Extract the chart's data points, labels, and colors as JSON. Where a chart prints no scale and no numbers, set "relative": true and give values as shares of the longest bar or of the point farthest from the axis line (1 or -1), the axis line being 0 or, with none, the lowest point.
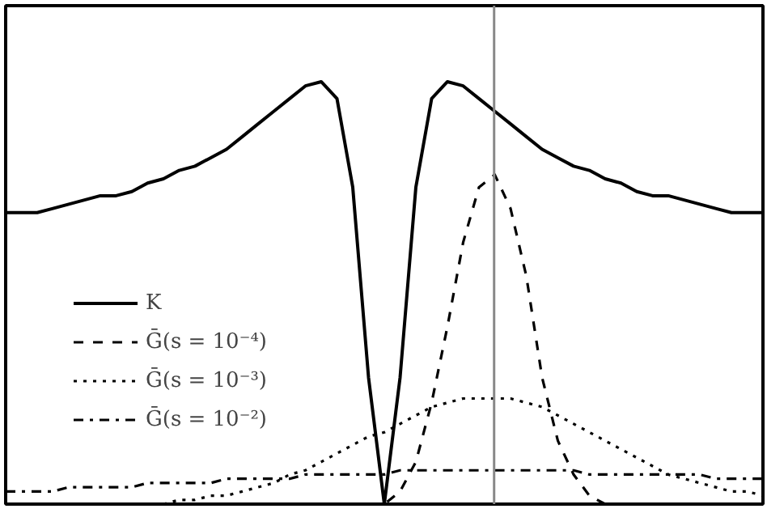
{
  "chart_data": {
    "type": "line",
    "relative": true,
    "grid": false,
    "legend": "left",
    "categories": [
      null,
      null,
      null,
      null,
      null,
      null,
      null,
      null,
      null,
      null,
      null,
      null,
      null,
      null,
      null,
      null,
      null,
      null,
      null,
      null,
      null,
      null,
      null,
      null,
      null,
      null,
      null,
      null,
      null,
      null,
      null,
      null,
      null,
      null,
      null,
      null,
      null,
      null,
      null,
      null,
      null,
      null,
      null,
      null,
      null,
      null,
      null,
      null,
      null
    ],
    "series": [
      {
        "name": "K",
        "color": "#000000",
        "line_style": "solid",
        "values": [
          0.69,
          0.69,
          0.69,
          0.7,
          0.71,
          0.72,
          0.73,
          0.73,
          0.74,
          0.76,
          0.77,
          0.79,
          0.8,
          0.82,
          0.84,
          0.87,
          0.9,
          0.93,
          0.96,
          0.99,
          1,
          0.96,
          0.75,
          0.3,
          0,
          0.3,
          0.75,
          0.96,
          1,
          0.99,
          0.96,
          0.93,
          0.9,
          0.87,
          0.84,
          0.82,
          0.8,
          0.79,
          0.77,
          0.76,
          0.74,
          0.73,
          0.73,
          0.72,
          0.71,
          0.7,
          0.69,
          0.69,
          0.69
        ]
      },
      {
        "name": "Ḡ(s = 10⁻⁴)",
        "color": "#000000",
        "line_style": "dashed",
        "values": [
          null,
          null,
          null,
          null,
          null,
          null,
          null,
          null,
          null,
          null,
          null,
          null,
          null,
          null,
          null,
          null,
          null,
          null,
          null,
          null,
          null,
          null,
          null,
          0,
          0,
          0.03,
          0.1,
          0.24,
          0.42,
          0.62,
          0.75,
          0.78,
          0.7,
          0.54,
          0.3,
          0.15,
          0.07,
          0.02,
          0,
          0,
          null,
          null,
          null,
          null,
          null,
          null,
          null,
          null,
          null
        ]
      },
      {
        "name": "Ḡ(s = 10⁻³)",
        "color": "#000000",
        "line_style": "dotted",
        "values": [
          null,
          null,
          null,
          null,
          null,
          null,
          null,
          null,
          null,
          null,
          0,
          0.01,
          0.01,
          0.02,
          0.02,
          0.03,
          0.04,
          0.05,
          0.07,
          0.08,
          0.1,
          0.12,
          0.14,
          0.16,
          0.17,
          0.19,
          0.21,
          0.23,
          0.24,
          0.25,
          0.25,
          0.25,
          0.25,
          0.24,
          0.23,
          0.21,
          0.19,
          0.17,
          0.15,
          0.13,
          0.11,
          0.09,
          0.07,
          0.06,
          0.05,
          0.04,
          0.03,
          0.03,
          0.02
        ]
      },
      {
        "name": "Ḡ(s = 10⁻²)",
        "color": "#000000",
        "line_style": "dashdot",
        "values": [
          0.03,
          0.03,
          0.03,
          0.03,
          0.04,
          0.04,
          0.04,
          0.04,
          0.04,
          0.05,
          0.05,
          0.05,
          0.05,
          0.05,
          0.06,
          0.06,
          0.06,
          0.06,
          0.06,
          0.07,
          0.07,
          0.07,
          0.07,
          0.07,
          0.07,
          0.08,
          0.08,
          0.08,
          0.08,
          0.08,
          0.08,
          0.08,
          0.08,
          0.08,
          0.08,
          0.08,
          0.08,
          0.07,
          0.07,
          0.07,
          0.07,
          0.07,
          0.07,
          0.07,
          0.07,
          0.06,
          0.06,
          0.06,
          0.06
        ]
      }
    ]
  }
}
